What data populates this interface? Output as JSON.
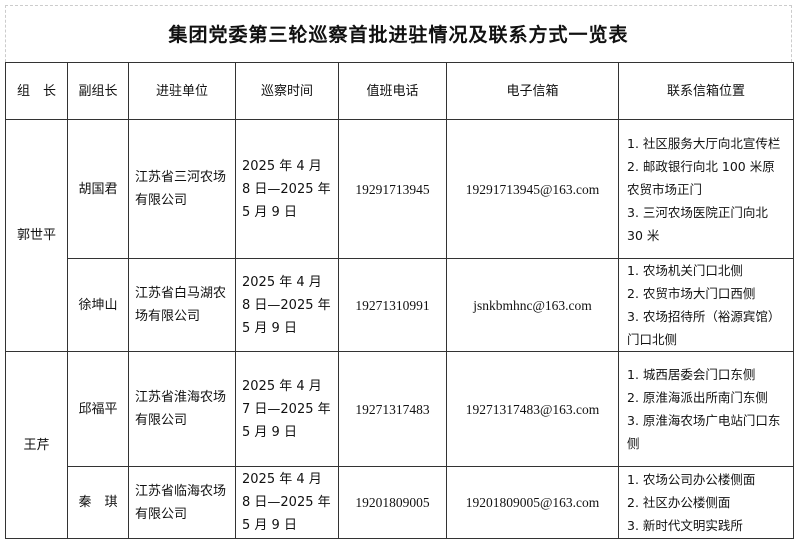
{
  "title": "集团党委第三轮巡察首批进驻情况及联系方式一览表",
  "headers": [
    "组　长",
    "副组长",
    "进驻单位",
    "巡察时间",
    "值班电话",
    "电子信箱",
    "联系信箱位置"
  ],
  "groups": [
    {
      "leader": "郭世平",
      "rows": [
        {
          "deputy": "胡国君",
          "unit": "江苏省三河农场有限公司",
          "time": "2025 年 4 月 8 日—2025 年 5 月 9 日",
          "phone": "19291713945",
          "email": "19291713945@163.com",
          "locations": [
            "1. 社区服务大厅向北宣传栏",
            "2. 邮政银行向北 100 米原农贸市场正门",
            "3. 三河农场医院正门向北 30 米"
          ]
        },
        {
          "deputy": "徐坤山",
          "unit": "江苏省白马湖农场有限公司",
          "time": "2025 年 4 月 8 日—2025 年 5 月 9 日",
          "phone": "19271310991",
          "email": "jsnkbmhnc@163.com",
          "locations": [
            "1. 农场机关门口北侧",
            "2. 农贸市场大门口西侧",
            "3. 农场招待所（裕源宾馆）门口北侧"
          ]
        }
      ]
    },
    {
      "leader": "王芹",
      "rows": [
        {
          "deputy": "邱福平",
          "unit": "江苏省淮海农场有限公司",
          "time": "2025 年 4 月 7 日—2025 年 5 月 9 日",
          "phone": "19271317483",
          "email": "19271317483@163.com",
          "locations": [
            "1. 城西居委会门口东侧",
            "2. 原淮海派出所南门东侧",
            "3. 原淮海农场广电站门口东侧"
          ]
        },
        {
          "deputy": "秦　琪",
          "unit": "江苏省临海农场有限公司",
          "time": "2025 年 4 月 8 日—2025 年 5 月 9 日",
          "phone": "19201809005",
          "email": "19201809005@163.com",
          "locations": [
            "1. 农场公司办公楼侧面",
            "2. 社区办公楼侧面",
            "3. 新时代文明实践所"
          ]
        }
      ]
    }
  ]
}
